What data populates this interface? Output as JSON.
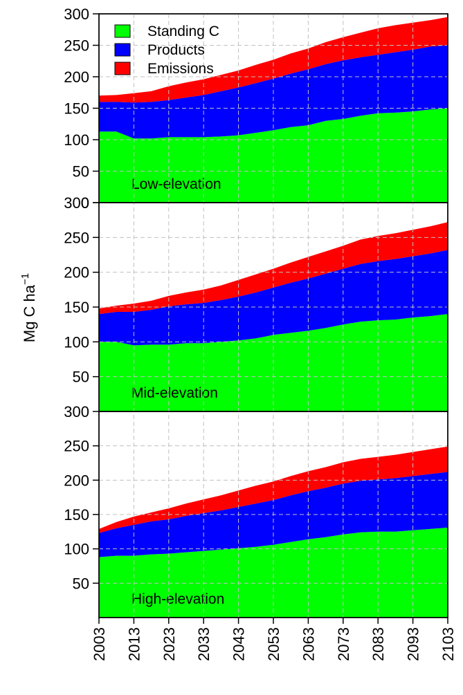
{
  "chart_data": {
    "type": "area",
    "stacked": true,
    "x": [
      2003,
      2008,
      2013,
      2018,
      2023,
      2028,
      2033,
      2038,
      2043,
      2048,
      2053,
      2058,
      2063,
      2068,
      2073,
      2078,
      2083,
      2088,
      2093,
      2098,
      2103
    ],
    "xlim": [
      2003,
      2103
    ],
    "x_ticks": [
      "2003",
      "2013",
      "2023",
      "2033",
      "2043",
      "2053",
      "2063",
      "2073",
      "2083",
      "2093",
      "2103"
    ],
    "ylabel": "Mg C ha",
    "ylabel_superscript": "−1",
    "ylim": [
      0,
      300
    ],
    "y_ticks": [
      "0",
      "50",
      "100",
      "150",
      "200",
      "250",
      "300"
    ],
    "grid": true,
    "legend": {
      "position": "top-left",
      "entries": [
        {
          "label": "Standing C",
          "color": "#00ff00"
        },
        {
          "label": "Products",
          "color": "#0000ff"
        },
        {
          "label": "Emissions",
          "color": "#ff0000"
        }
      ]
    },
    "panels": [
      {
        "label": "Low-elevation",
        "series": [
          {
            "name": "Standing C",
            "color": "#00ff00",
            "values": [
              113,
              113,
              102,
              102,
              104,
              104,
              104,
              105,
              107,
              111,
              115,
              120,
              123,
              130,
              133,
              138,
              142,
              143,
              145,
              148,
              150
            ]
          },
          {
            "name": "Products",
            "color": "#0000ff",
            "values": [
              47,
              47,
              57,
              58,
              59,
              63,
              67,
              72,
              76,
              79,
              82,
              85,
              89,
              90,
              93,
              93,
              93,
              96,
              98,
              100,
              100
            ]
          },
          {
            "name": "Emissions",
            "color": "#ff0000",
            "values": [
              10,
              11,
              15,
              17,
              22,
              24,
              25,
              26,
              27,
              29,
              30,
              32,
              33,
              35,
              37,
              39,
              42,
              43,
              43,
              42,
              45
            ]
          }
        ]
      },
      {
        "label": "Mid-elevation",
        "series": [
          {
            "name": "Standing C",
            "color": "#00ff00",
            "values": [
              100,
              100,
              95,
              96,
              96,
              98,
              98,
              100,
              102,
              105,
              110,
              113,
              116,
              120,
              125,
              129,
              131,
              132,
              135,
              137,
              140
            ]
          },
          {
            "name": "Products",
            "color": "#0000ff",
            "values": [
              40,
              43,
              48,
              50,
              55,
              56,
              58,
              60,
              63,
              66,
              68,
              72,
              75,
              78,
              80,
              83,
              85,
              87,
              88,
              90,
              92
            ]
          },
          {
            "name": "Emissions",
            "color": "#ff0000",
            "values": [
              8,
              9,
              12,
              13,
              15,
              17,
              19,
              21,
              24,
              26,
              27,
              29,
              31,
              32,
              33,
              35,
              36,
              37,
              38,
              39,
              40
            ]
          }
        ]
      },
      {
        "label": "High-elevation",
        "series": [
          {
            "name": "Standing C",
            "color": "#00ff00",
            "values": [
              88,
              90,
              90,
              92,
              93,
              95,
              97,
              99,
              101,
              103,
              106,
              110,
              114,
              117,
              121,
              124,
              125,
              125,
              127,
              129,
              131
            ]
          },
          {
            "name": "Products",
            "color": "#0000ff",
            "values": [
              35,
              40,
              45,
              48,
              50,
              53,
              55,
              57,
              60,
              63,
              65,
              68,
              70,
              72,
              74,
              75,
              76,
              78,
              79,
              80,
              81
            ]
          },
          {
            "name": "Emissions",
            "color": "#ff0000",
            "values": [
              6,
              9,
              12,
              13,
              16,
              18,
              20,
              22,
              24,
              26,
              27,
              28,
              29,
              30,
              31,
              32,
              33,
              34,
              35,
              36,
              37
            ]
          }
        ]
      }
    ]
  }
}
